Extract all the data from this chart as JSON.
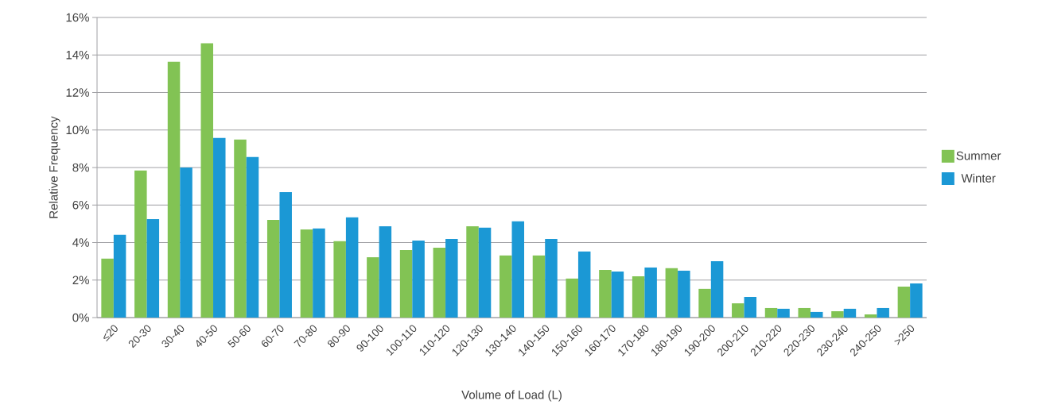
{
  "chart_data": {
    "type": "bar",
    "xlabel": "Volume of Load (L)",
    "ylabel": "Relative Frequency",
    "categories": [
      "≤20",
      "20-30",
      "30-40",
      "40-50",
      "50-60",
      "60-70",
      "70-80",
      "80-90",
      "90-100",
      "100-110",
      "110-120",
      "120-130",
      "130-140",
      "140-150",
      "150-160",
      "160-170",
      "170-180",
      "180-190",
      "190-200",
      "200-210",
      "210-220",
      "220-230",
      "230-240",
      "240-250",
      ">250"
    ],
    "series": [
      {
        "name": "Summer",
        "color": "#82c354",
        "values": [
          3.14,
          7.84,
          13.64,
          14.62,
          9.49,
          5.21,
          4.7,
          4.07,
          3.22,
          3.6,
          3.73,
          4.87,
          3.31,
          3.31,
          2.08,
          2.54,
          2.2,
          2.63,
          1.53,
          0.76,
          0.51,
          0.51,
          0.34,
          0.17,
          1.65
        ]
      },
      {
        "name": "Winter",
        "color": "#1b98d5",
        "values": [
          4.41,
          5.25,
          8.0,
          9.58,
          8.56,
          6.69,
          4.75,
          5.34,
          4.87,
          4.11,
          4.19,
          4.79,
          5.13,
          4.19,
          3.52,
          2.46,
          2.67,
          2.5,
          3.01,
          1.1,
          0.47,
          0.3,
          0.47,
          0.51,
          1.82
        ]
      }
    ],
    "ylim": [
      0,
      16
    ],
    "yticks": [
      {
        "value": 0,
        "label": "0%"
      },
      {
        "value": 2,
        "label": "2%"
      },
      {
        "value": 4,
        "label": "4%"
      },
      {
        "value": 6,
        "label": "6%"
      },
      {
        "value": 8,
        "label": "8%"
      },
      {
        "value": 10,
        "label": "10%"
      },
      {
        "value": 12,
        "label": "12%"
      },
      {
        "value": 14,
        "label": "14%"
      },
      {
        "value": 16,
        "label": "16%"
      }
    ],
    "grid": "y",
    "legend": "right"
  }
}
